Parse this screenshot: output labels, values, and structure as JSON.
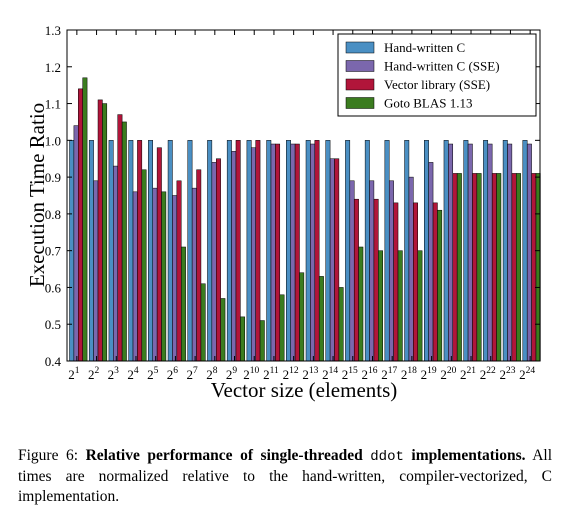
{
  "chart_data": {
    "type": "bar",
    "xlabel": "Vector size (elements)",
    "ylabel": "Execution Time Ratio",
    "ylim": [
      0.4,
      1.3
    ],
    "yticks": [
      "0.4",
      "0.5",
      "0.6",
      "0.7",
      "0.8",
      "0.9",
      "1.0",
      "1.1",
      "1.2",
      "1.3"
    ],
    "categories": [
      {
        "base": "2",
        "exp": "1"
      },
      {
        "base": "2",
        "exp": "2"
      },
      {
        "base": "2",
        "exp": "3"
      },
      {
        "base": "2",
        "exp": "4"
      },
      {
        "base": "2",
        "exp": "5"
      },
      {
        "base": "2",
        "exp": "6"
      },
      {
        "base": "2",
        "exp": "7"
      },
      {
        "base": "2",
        "exp": "8"
      },
      {
        "base": "2",
        "exp": "9"
      },
      {
        "base": "2",
        "exp": "10"
      },
      {
        "base": "2",
        "exp": "11"
      },
      {
        "base": "2",
        "exp": "12"
      },
      {
        "base": "2",
        "exp": "13"
      },
      {
        "base": "2",
        "exp": "14"
      },
      {
        "base": "2",
        "exp": "15"
      },
      {
        "base": "2",
        "exp": "16"
      },
      {
        "base": "2",
        "exp": "17"
      },
      {
        "base": "2",
        "exp": "18"
      },
      {
        "base": "2",
        "exp": "19"
      },
      {
        "base": "2",
        "exp": "20"
      },
      {
        "base": "2",
        "exp": "21"
      },
      {
        "base": "2",
        "exp": "22"
      },
      {
        "base": "2",
        "exp": "23"
      },
      {
        "base": "2",
        "exp": "24"
      }
    ],
    "legend_position": "top-right",
    "grid": false,
    "series": [
      {
        "name": "Hand-written C",
        "color": "#4a8fc3",
        "values": [
          1.0,
          1.0,
          1.0,
          1.0,
          1.0,
          1.0,
          1.0,
          1.0,
          1.0,
          1.0,
          1.0,
          1.0,
          1.0,
          1.0,
          1.0,
          1.0,
          1.0,
          1.0,
          1.0,
          1.0,
          1.0,
          1.0,
          1.0,
          1.0
        ]
      },
      {
        "name": "Hand-written C (SSE)",
        "color": "#7b67ad",
        "values": [
          1.04,
          0.89,
          0.93,
          0.86,
          0.87,
          0.85,
          0.87,
          0.94,
          0.97,
          0.98,
          0.99,
          0.99,
          0.99,
          0.95,
          0.89,
          0.89,
          0.89,
          0.9,
          0.94,
          0.99,
          0.99,
          0.99,
          0.99,
          0.99
        ]
      },
      {
        "name": "Vector library (SSE)",
        "color": "#b1153a",
        "values": [
          1.14,
          1.11,
          1.07,
          1.0,
          0.98,
          0.89,
          0.92,
          0.95,
          1.0,
          1.0,
          0.99,
          0.99,
          1.0,
          0.95,
          0.84,
          0.84,
          0.83,
          0.83,
          0.83,
          0.91,
          0.91,
          0.91,
          0.91,
          0.91
        ]
      },
      {
        "name": "Goto BLAS 1.13",
        "color": "#3b7c1f",
        "values": [
          1.17,
          1.1,
          1.05,
          0.92,
          0.86,
          0.71,
          0.61,
          0.57,
          0.52,
          0.51,
          0.58,
          0.64,
          0.63,
          0.6,
          0.71,
          0.7,
          0.7,
          0.7,
          0.81,
          0.91,
          0.91,
          0.91,
          0.91,
          0.91
        ]
      }
    ]
  },
  "caption": {
    "label": "Figure 6:",
    "bold_part1": "Relative performance of single-threaded",
    "code": "ddot",
    "bold_part2": "implementations.",
    "rest": "All times are normalized relative to the hand-written, compiler-vectorized, C implementation."
  }
}
